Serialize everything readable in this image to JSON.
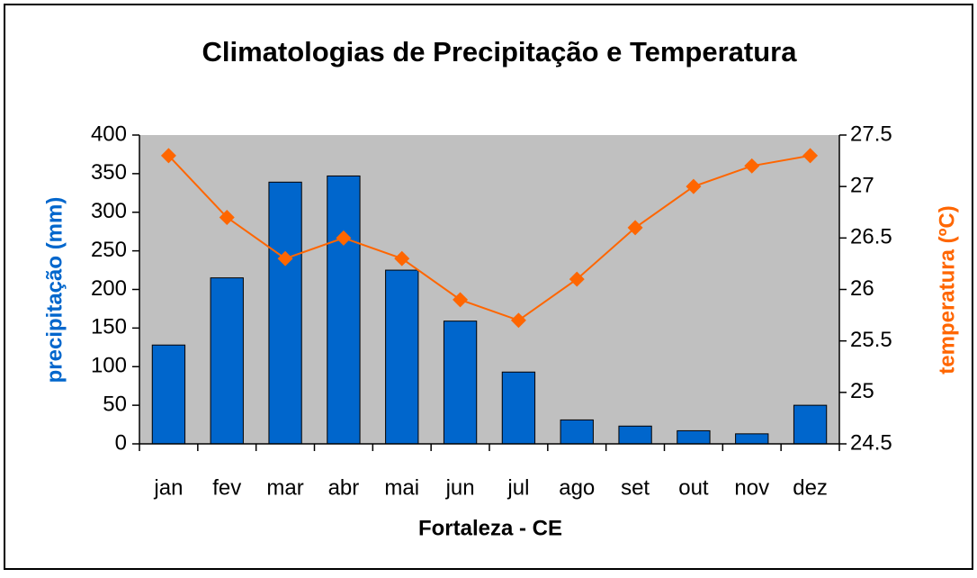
{
  "chart_data": {
    "type": "bar",
    "title": "Climatologias de Precipitação e Temperatura",
    "x_label": "Fortaleza - CE",
    "y_label": "precipitação (mm)",
    "y2_label": "temperatura (ºC)",
    "categories": [
      "jan",
      "fev",
      "mar",
      "abr",
      "mai",
      "jun",
      "jul",
      "ago",
      "set",
      "out",
      "nov",
      "dez"
    ],
    "series": [
      {
        "name": "precipitação",
        "type": "bar",
        "color": "#0066cc",
        "axis": "y",
        "values": [
          128,
          215,
          339,
          347,
          225,
          159,
          93,
          31,
          23,
          17,
          13,
          50
        ]
      },
      {
        "name": "temperatura",
        "type": "line",
        "color": "#ff6600",
        "axis": "y2",
        "values": [
          27.3,
          26.7,
          26.3,
          26.5,
          26.3,
          25.9,
          25.7,
          26.1,
          26.6,
          27.0,
          27.2,
          27.3
        ]
      }
    ],
    "ylim": [
      0,
      400
    ],
    "yticks": [
      0,
      50,
      100,
      150,
      200,
      250,
      300,
      350,
      400
    ],
    "y2lim": [
      24.5,
      27.5
    ],
    "y2ticks": [
      24.5,
      25,
      25.5,
      26,
      26.5,
      27,
      27.5
    ],
    "plot_background": "#c0c0c0",
    "grid": false
  }
}
